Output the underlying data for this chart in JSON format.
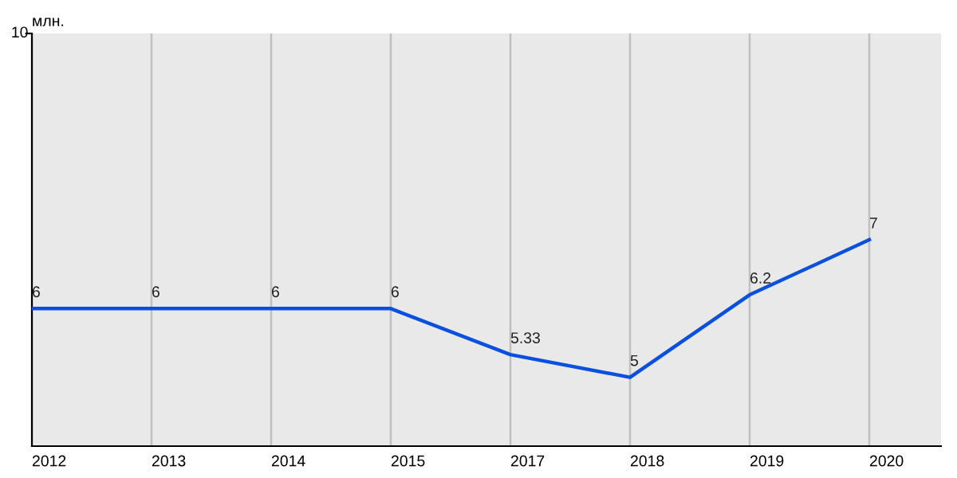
{
  "chart_data": {
    "type": "line",
    "ylabel": "млн.",
    "categories": [
      "2012",
      "2013",
      "2014",
      "2015",
      "2017",
      "2018",
      "2019",
      "2020"
    ],
    "series": [
      {
        "color": "#0a50e0",
        "values": [
          6,
          6,
          6,
          6,
          5.33,
          5,
          6.2,
          7
        ]
      }
    ],
    "ylim": [
      4,
      10
    ],
    "annotations": [
      "10"
    ],
    "grid": "x",
    "data_labels": true,
    "marker": "none",
    "line_style": "solid"
  }
}
